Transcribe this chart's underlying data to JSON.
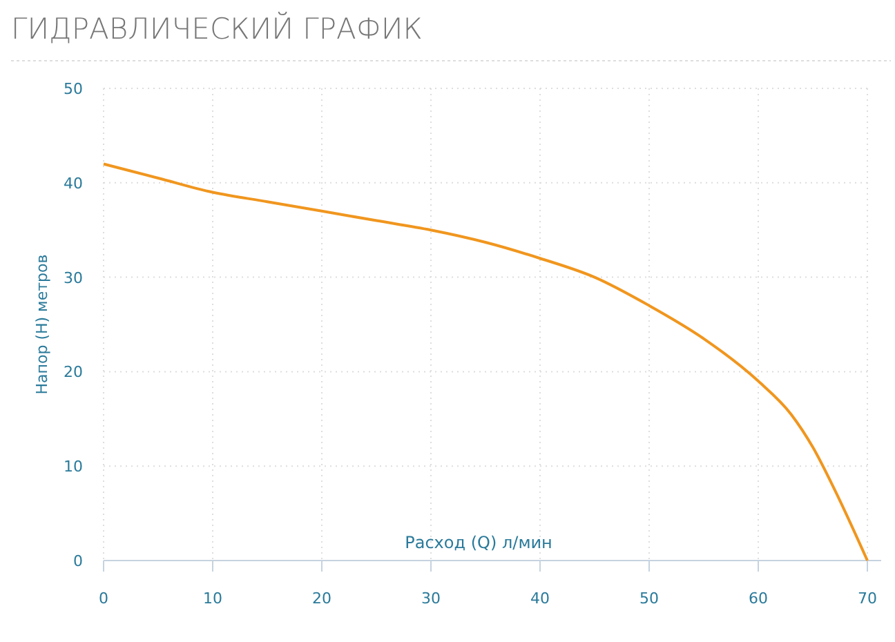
{
  "chart_data": {
    "type": "line",
    "title": "ГИДРАВЛИЧЕСКИЙ ГРАФИК",
    "xlabel": "Расход (Q) л/мин",
    "ylabel": "Напор (H) метров",
    "x": [
      0,
      5,
      10,
      15,
      20,
      25,
      30,
      35,
      40,
      45,
      50,
      55,
      60,
      63,
      65,
      67,
      70
    ],
    "series": [
      {
        "color": "#f0961e",
        "values": [
          42,
          40.5,
          39,
          38,
          37,
          36,
          35,
          33.7,
          32,
          30,
          27,
          23.5,
          19,
          15.5,
          12,
          7.5,
          0
        ]
      }
    ],
    "xlim": [
      0,
      70
    ],
    "xticks": [
      0,
      10,
      20,
      30,
      40,
      50,
      60,
      70
    ],
    "ylim": [
      0,
      50
    ],
    "yticks": [
      0,
      10,
      20,
      30,
      40,
      50
    ],
    "grid": true,
    "marker": "none",
    "line_style": "solid"
  }
}
